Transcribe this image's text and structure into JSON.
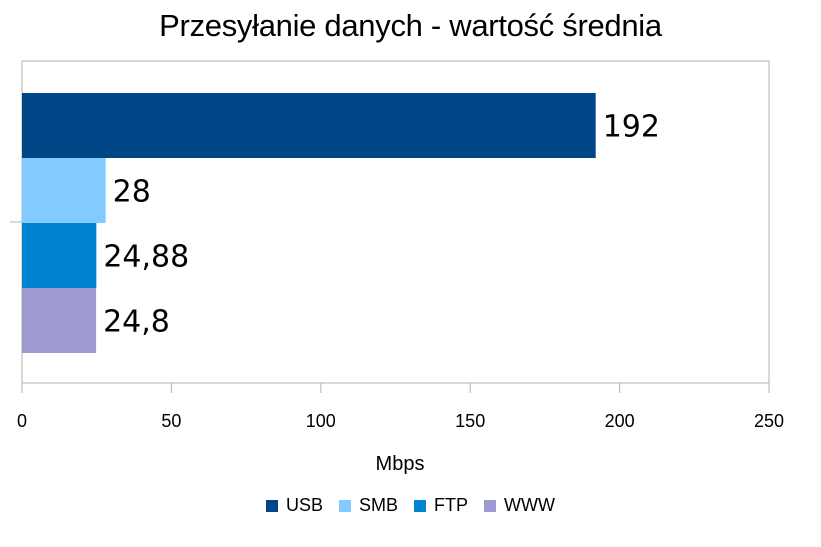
{
  "chart_data": {
    "type": "bar",
    "orientation": "horizontal",
    "title": "Przesyłanie danych - wartość średnia",
    "xlabel": "Mbps",
    "ylabel": "",
    "categories": [
      "USB",
      "SMB",
      "FTP",
      "WWW"
    ],
    "values": [
      192,
      28,
      24.88,
      24.8
    ],
    "data_labels": [
      "192",
      "28",
      "24,88",
      "24,8"
    ],
    "colors": [
      "#004586",
      "#83caff",
      "#0084d1",
      "#9e9ad0"
    ],
    "xlim": [
      0,
      250
    ],
    "xticks": [
      "0",
      "50",
      "100",
      "150",
      "200",
      "250"
    ],
    "grid": false,
    "legend_position": "bottom"
  }
}
